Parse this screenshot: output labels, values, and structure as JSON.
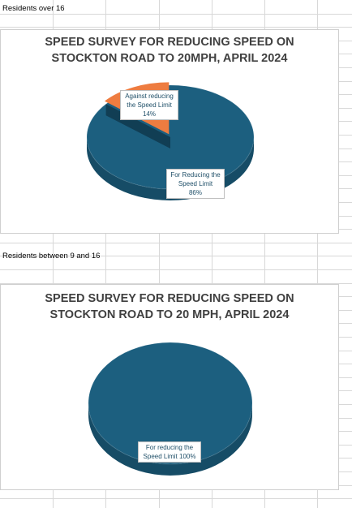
{
  "sheet": {
    "label_1": "Residents over 16",
    "label_2": "Residents between 9 and 16"
  },
  "colors": {
    "series_main": "#1c5f7f",
    "series_main_side": "#164c66",
    "series_main_dark": "#113e54",
    "series_minor": "#ee7c40",
    "series_minor_side": "#c75f28",
    "gridline": "#d8d8d8"
  },
  "chart_data": [
    {
      "type": "pie",
      "title": "SPEED SURVEY FOR REDUCING SPEED ON STOCKTON ROAD TO 20MPH, APRIL 2024",
      "title_lines": [
        "SPEED SURVEY FOR REDUCING SPEED ON",
        "STOCKTON ROAD TO 20MPH, APRIL 2024"
      ],
      "categories": [
        "Against reducing the Speed Limit",
        "For Reducing the Speed Limit"
      ],
      "values": [
        14,
        86
      ],
      "unit": "%",
      "data_labels": [
        {
          "lines": [
            "Against reducing",
            "the Speed Limit",
            "14%"
          ]
        },
        {
          "lines": [
            "For Reducing the",
            "Speed Limit",
            "86%"
          ]
        }
      ],
      "style": "3d",
      "legend": "none"
    },
    {
      "type": "pie",
      "title": "SPEED SURVEY FOR REDUCING SPEED ON STOCKTON ROAD TO 20 MPH, APRIL 2024",
      "title_lines": [
        "SPEED SURVEY FOR REDUCING SPEED ON",
        "STOCKTON ROAD TO 20 MPH, APRIL 2024"
      ],
      "categories": [
        "For reducing the Speed Limit"
      ],
      "values": [
        100
      ],
      "unit": "%",
      "data_labels": [
        {
          "lines": [
            "For reducing the",
            "Speed Limit 100%"
          ]
        }
      ],
      "style": "3d",
      "legend": "none"
    }
  ]
}
